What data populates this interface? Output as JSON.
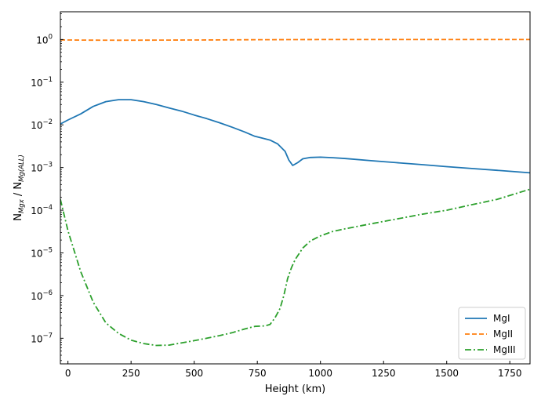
{
  "chart_data": {
    "type": "line",
    "xlabel": "Height (km)",
    "ylabel_main": "N",
    "ylabel_sub1": "Mgx",
    "ylabel_mid": " / N",
    "ylabel_sub2": "Mg(ALL)",
    "y_scale": "log",
    "xlim": [
      -30,
      1830
    ],
    "ylim_exp": [
      -7.6,
      0.65
    ],
    "x_ticks": [
      0,
      250,
      500,
      750,
      1000,
      1250,
      1500,
      1750
    ],
    "x_tick_labels": [
      "0",
      "250",
      "500",
      "750",
      "1000",
      "1250",
      "1500",
      "1750"
    ],
    "y_ticks_exp": [
      0,
      -1,
      -2,
      -3,
      -4,
      -5,
      -6,
      -7
    ],
    "y_tick_labels": [
      {
        "base": "10",
        "exp": "0"
      },
      {
        "base": "10",
        "exp": "−1"
      },
      {
        "base": "10",
        "exp": "−2"
      },
      {
        "base": "10",
        "exp": "−3"
      },
      {
        "base": "10",
        "exp": "−4"
      },
      {
        "base": "10",
        "exp": "−5"
      },
      {
        "base": "10",
        "exp": "−6"
      },
      {
        "base": "10",
        "exp": "−7"
      }
    ],
    "grid": false,
    "legend_position": "lower-right",
    "series": [
      {
        "name": "MgI",
        "color": "#1f77b4",
        "style": "solid",
        "x": [
          -30,
          0,
          50,
          100,
          150,
          200,
          250,
          300,
          350,
          400,
          450,
          500,
          550,
          600,
          650,
          700,
          740,
          770,
          800,
          830,
          860,
          875,
          890,
          910,
          930,
          960,
          1000,
          1050,
          1100,
          1200,
          1300,
          1400,
          1500,
          1600,
          1700,
          1830
        ],
        "y": [
          0.0105,
          0.013,
          0.018,
          0.027,
          0.035,
          0.039,
          0.039,
          0.035,
          0.03,
          0.025,
          0.021,
          0.017,
          0.014,
          0.0112,
          0.0088,
          0.0068,
          0.0054,
          0.0049,
          0.0044,
          0.0036,
          0.0024,
          0.0015,
          0.00112,
          0.0013,
          0.0016,
          0.00172,
          0.00175,
          0.0017,
          0.00162,
          0.00145,
          0.0013,
          0.00117,
          0.00105,
          0.00095,
          0.00086,
          0.00075
        ]
      },
      {
        "name": "MgII",
        "color": "#ff7f0e",
        "style": "dashed",
        "x": [
          -30,
          0,
          100,
          200,
          300,
          400,
          500,
          600,
          700,
          800,
          900,
          1000,
          1200,
          1400,
          1600,
          1830
        ],
        "y": [
          0.98,
          0.975,
          0.965,
          0.96,
          0.965,
          0.97,
          0.975,
          0.98,
          0.985,
          0.99,
          0.995,
          0.997,
          0.998,
          0.999,
          0.999,
          0.999
        ]
      },
      {
        "name": "MgIII",
        "color": "#2ca02c",
        "style": "dashdot",
        "x": [
          -30,
          0,
          50,
          100,
          150,
          200,
          250,
          300,
          350,
          400,
          450,
          500,
          550,
          600,
          650,
          700,
          740,
          780,
          800,
          820,
          840,
          855,
          870,
          885,
          900,
          930,
          960,
          1000,
          1050,
          1100,
          1200,
          1300,
          1400,
          1500,
          1600,
          1700,
          1830
        ],
        "y": [
          0.00018,
          3.3e-05,
          3.7e-06,
          7e-07,
          2.3e-07,
          1.3e-07,
          9e-08,
          7.5e-08,
          6.8e-08,
          6.9e-08,
          7.8e-08,
          8.8e-08,
          1e-07,
          1.15e-07,
          1.35e-07,
          1.65e-07,
          1.9e-07,
          1.95e-07,
          2.1e-07,
          3e-07,
          5e-07,
          1e-06,
          2.5e-06,
          4.5e-06,
          7e-06,
          1.3e-05,
          1.9e-05,
          2.5e-05,
          3.2e-05,
          3.7e-05,
          4.8e-05,
          6.2e-05,
          8e-05,
          0.0001,
          0.000135,
          0.00018,
          0.00031
        ]
      }
    ]
  }
}
